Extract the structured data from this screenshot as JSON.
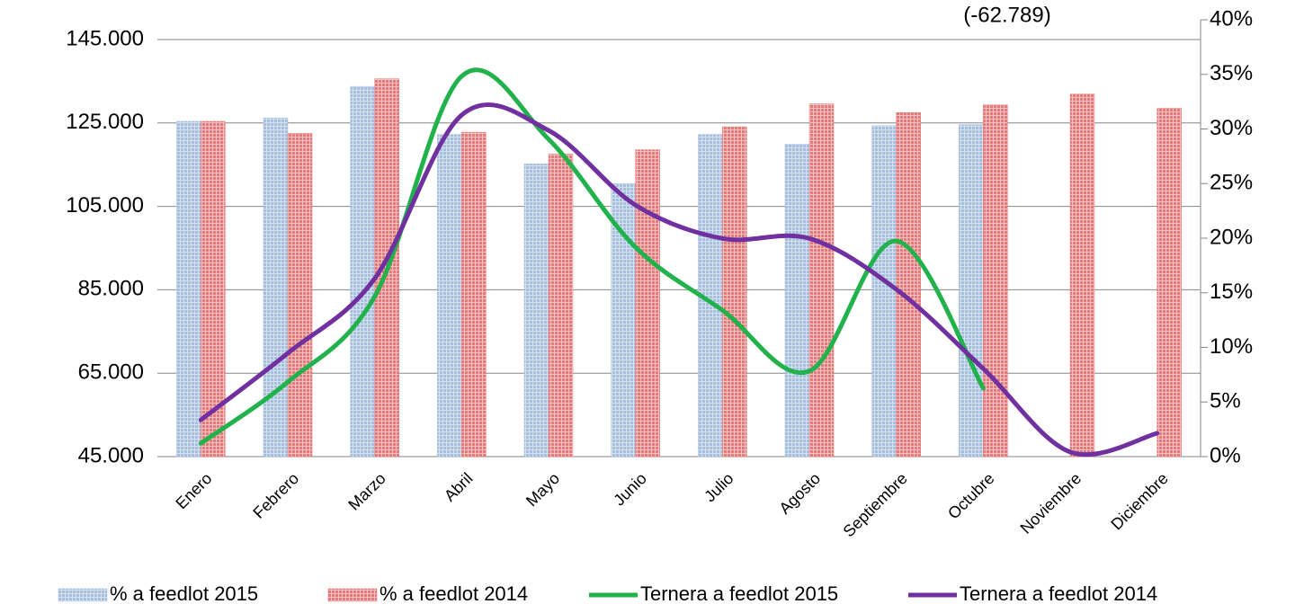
{
  "chart_data": {
    "type": "bar-line",
    "annotation": "(-62.789)",
    "categories": [
      "Enero",
      "Febrero",
      "Marzo",
      "Abril",
      "Mayo",
      "Junio",
      "Julio",
      "Agosto",
      "Septiembre",
      "Octubre",
      "Noviembre",
      "Diciembre"
    ],
    "series": [
      {
        "name": "% a feedlot 2015",
        "type": "bar",
        "axis": "y2",
        "color": "#a7bfdf",
        "values": [
          30.7,
          31.0,
          33.9,
          29.5,
          26.8,
          25.0,
          29.5,
          28.6,
          30.3,
          30.4,
          null,
          null
        ]
      },
      {
        "name": "% a feedlot 2014",
        "type": "bar",
        "axis": "y2",
        "color": "#e47a7a",
        "values": [
          30.7,
          29.6,
          34.6,
          29.7,
          27.7,
          28.1,
          30.2,
          32.3,
          31.5,
          32.2,
          33.2,
          31.9
        ]
      },
      {
        "name": "Ternera a feedlot 2015",
        "type": "line",
        "color": "#22b24c",
        "values": [
          48200,
          62900,
          83400,
          136200,
          121100,
          95200,
          80100,
          65500,
          96700,
          61400,
          null,
          null
        ]
      },
      {
        "name": "Ternera a feedlot 2014",
        "type": "line",
        "color": "#7030a0",
        "values": [
          53800,
          69800,
          87700,
          126900,
          123200,
          105300,
          97300,
          97300,
          85100,
          66100,
          46100,
          50600
        ]
      }
    ],
    "ylim": [
      45000,
      145000
    ],
    "yticks": [
      {
        "value": 45000,
        "label": "45.000"
      },
      {
        "value": 65000,
        "label": "65.000"
      },
      {
        "value": 85000,
        "label": "85.000"
      },
      {
        "value": 105000,
        "label": "105.000"
      },
      {
        "value": 125000,
        "label": "125.000"
      },
      {
        "value": 145000,
        "label": "145.000"
      }
    ],
    "y2lim": [
      0,
      40
    ],
    "y2ticks": [
      {
        "value": 0,
        "label": "0%"
      },
      {
        "value": 5,
        "label": "5%"
      },
      {
        "value": 10,
        "label": "10%"
      },
      {
        "value": 15,
        "label": "15%"
      },
      {
        "value": 20,
        "label": "20%"
      },
      {
        "value": 25,
        "label": "25%"
      },
      {
        "value": 30,
        "label": "30%"
      },
      {
        "value": 35,
        "label": "35%"
      },
      {
        "value": 40,
        "label": "40%"
      }
    ],
    "grid": true,
    "legend": "bottom"
  }
}
